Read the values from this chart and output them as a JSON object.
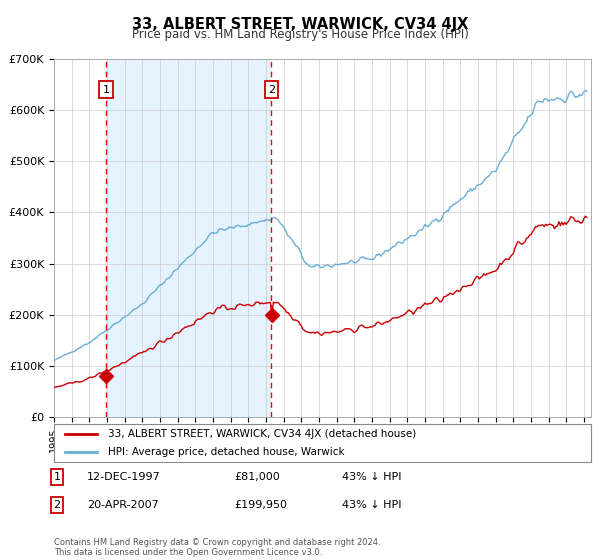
{
  "title": "33, ALBERT STREET, WARWICK, CV34 4JX",
  "subtitle": "Price paid vs. HM Land Registry's House Price Index (HPI)",
  "legend_line1": "33, ALBERT STREET, WARWICK, CV34 4JX (detached house)",
  "legend_line2": "HPI: Average price, detached house, Warwick",
  "annotation1_date": "12-DEC-1997",
  "annotation1_price": "£81,000",
  "annotation1_hpi": "43% ↓ HPI",
  "annotation2_date": "20-APR-2007",
  "annotation2_price": "£199,950",
  "annotation2_hpi": "43% ↓ HPI",
  "sale1_year": 1997.95,
  "sale1_value": 81000,
  "sale2_year": 2007.3,
  "sale2_value": 199950,
  "hpi_color": "#6baed6",
  "price_color": "#cc0000",
  "vline_color": "#ff0000",
  "bg_shade_color": "#ddeeff",
  "ylim_max": 700000,
  "footer": "Contains HM Land Registry data © Crown copyright and database right 2024.\nThis data is licensed under the Open Government Licence v3.0."
}
